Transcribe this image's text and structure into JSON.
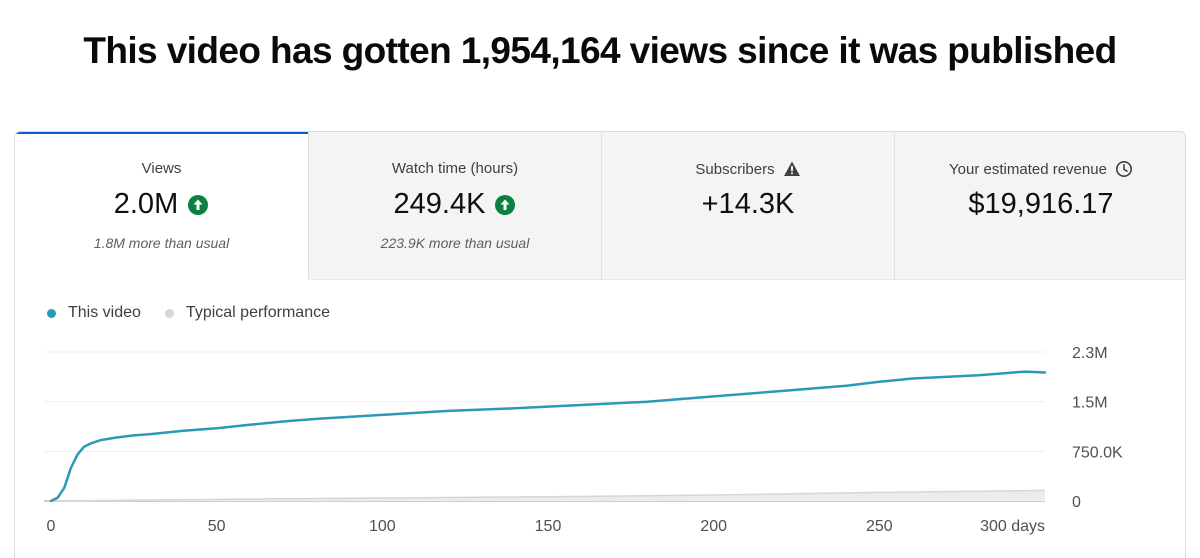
{
  "headline": "This video has gotten 1,954,164 views since it was published",
  "tabs": [
    {
      "title": "Views",
      "value": "2.0M",
      "sub": "1.8M more than usual",
      "icon": "arrow-up-circle-icon"
    },
    {
      "title": "Watch time (hours)",
      "value": "249.4K",
      "sub": "223.9K more than usual",
      "icon": "arrow-up-circle-icon"
    },
    {
      "title": "Subscribers",
      "value": "+14.3K",
      "sub": "",
      "icon": "warning-triangle-icon"
    },
    {
      "title": "Your estimated revenue",
      "value": "$19,916.17",
      "sub": "",
      "icon": "clock-icon"
    }
  ],
  "colors": {
    "accent": "#065fd4",
    "up": "#0b8043",
    "series_this": "#2c9ab7",
    "series_typical": "#d6d6d6"
  },
  "chart_data": {
    "type": "line",
    "legend": [
      "This video",
      "Typical performance"
    ],
    "x_tick_labels": [
      "0",
      "50",
      "100",
      "150",
      "200",
      "250",
      "300 days"
    ],
    "x_ticks": [
      0,
      50,
      100,
      150,
      200,
      250,
      300
    ],
    "y_tick_labels": [
      "0",
      "750.0K",
      "1.5M",
      "2.3M"
    ],
    "y_ticks": [
      0,
      750000,
      1500000,
      2250000
    ],
    "xlim": [
      0,
      300
    ],
    "ylim": [
      0,
      2250000
    ],
    "grid": true,
    "series": [
      {
        "name": "This video",
        "x": [
          0,
          2,
          4,
          6,
          8,
          10,
          12,
          15,
          20,
          25,
          30,
          40,
          50,
          60,
          70,
          80,
          100,
          120,
          140,
          160,
          180,
          200,
          220,
          240,
          250,
          260,
          280,
          300,
          294
        ],
        "y": [
          0,
          50000,
          200000,
          500000,
          700000,
          820000,
          870000,
          920000,
          960000,
          990000,
          1010000,
          1060000,
          1100000,
          1150000,
          1200000,
          1240000,
          1300000,
          1360000,
          1400000,
          1450000,
          1500000,
          1580000,
          1660000,
          1740000,
          1800000,
          1850000,
          1900000,
          1940000,
          1954164
        ]
      },
      {
        "name": "Typical performance",
        "x": [
          0,
          50,
          100,
          150,
          200,
          250,
          300
        ],
        "y": [
          0,
          25000,
          45000,
          65000,
          90000,
          130000,
          160000
        ]
      }
    ]
  }
}
